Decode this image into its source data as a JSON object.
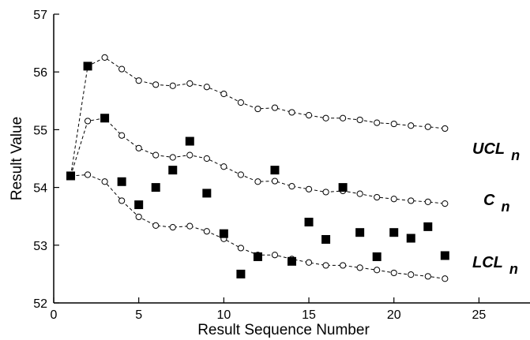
{
  "chart_data": {
    "type": "scatter",
    "xlabel": "Result Sequence Number",
    "ylabel": "Result Value",
    "xlim": [
      0,
      28
    ],
    "ylim": [
      52,
      57
    ],
    "xticks": [
      0,
      5,
      10,
      15,
      20,
      25
    ],
    "yticks": [
      52,
      53,
      54,
      55,
      56,
      57
    ],
    "grid": false,
    "series": [
      {
        "name": "UCL",
        "subscript": "n",
        "style": "dashed-line-open-circles",
        "x": [
          1,
          2,
          3,
          4,
          5,
          6,
          7,
          8,
          9,
          10,
          11,
          12,
          13,
          14,
          15,
          16,
          17,
          18,
          19,
          20,
          21,
          22,
          23
        ],
        "y": [
          54.2,
          56.1,
          56.25,
          56.05,
          55.85,
          55.78,
          55.76,
          55.8,
          55.74,
          55.62,
          55.47,
          55.36,
          55.38,
          55.3,
          55.25,
          55.2,
          55.2,
          55.17,
          55.12,
          55.1,
          55.07,
          55.05,
          55.02
        ]
      },
      {
        "name": "C",
        "subscript": "n",
        "style": "dashed-line-open-circles",
        "x": [
          1,
          2,
          3,
          4,
          5,
          6,
          7,
          8,
          9,
          10,
          11,
          12,
          13,
          14,
          15,
          16,
          17,
          18,
          19,
          20,
          21,
          22,
          23
        ],
        "y": [
          54.2,
          55.15,
          55.2,
          54.9,
          54.68,
          54.56,
          54.52,
          54.56,
          54.5,
          54.36,
          54.22,
          54.1,
          54.11,
          54.02,
          53.97,
          53.92,
          53.94,
          53.89,
          53.83,
          53.8,
          53.77,
          53.75,
          53.72
        ]
      },
      {
        "name": "LCL",
        "subscript": "n",
        "style": "dashed-line-open-circles",
        "x": [
          1,
          2,
          3,
          4,
          5,
          6,
          7,
          8,
          9,
          10,
          11,
          12,
          13,
          14,
          15,
          16,
          17,
          18,
          19,
          20,
          21,
          22,
          23
        ],
        "y": [
          54.2,
          54.22,
          54.1,
          53.77,
          53.49,
          53.34,
          53.31,
          53.33,
          53.24,
          53.11,
          52.95,
          52.83,
          52.83,
          52.76,
          52.7,
          52.65,
          52.65,
          52.61,
          52.57,
          52.52,
          52.49,
          52.46,
          52.42
        ]
      },
      {
        "name": "",
        "style": "filled-squares",
        "x": [
          1,
          2,
          3,
          4,
          5,
          6,
          7,
          8,
          9,
          10,
          11,
          12,
          13,
          14,
          15,
          16,
          17,
          18,
          19,
          20,
          21,
          22,
          23
        ],
        "y": [
          54.2,
          56.1,
          55.2,
          54.1,
          53.7,
          54.0,
          54.3,
          54.8,
          53.9,
          53.2,
          52.5,
          52.8,
          54.3,
          52.72,
          53.4,
          53.1,
          54.0,
          53.22,
          52.8,
          53.22,
          53.12,
          53.32,
          52.82
        ]
      }
    ]
  }
}
